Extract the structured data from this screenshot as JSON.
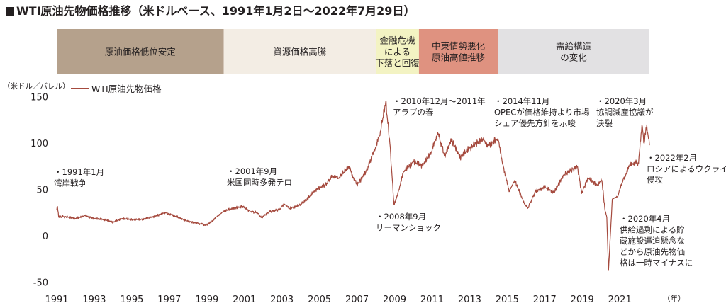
{
  "title": "WTI原油先物価格推移（米ドルベース、1991年1月2日～2022年7月29日）",
  "chart_data": {
    "type": "line",
    "title": "WTI原油先物価格推移（米ドルベース、1991年1月2日～2022年7月29日）",
    "ylabel": "（米ドル／バレル）",
    "xlabel": "（年）",
    "ylim": [
      -50,
      150
    ],
    "xlim": [
      1991,
      2022.58
    ],
    "y_ticks": [
      150,
      100,
      50,
      0,
      -50
    ],
    "x_ticks": [
      1991,
      1993,
      1995,
      1997,
      1999,
      2001,
      2003,
      2005,
      2007,
      2009,
      2011,
      2013,
      2015,
      2017,
      2019,
      2021
    ],
    "legend": "top-left",
    "series": [
      {
        "name": "WTI原油先物価格",
        "color": "#a54a3e",
        "x": [
          1991.0,
          1991.04,
          1991.1,
          1991.5,
          1992.0,
          1992.5,
          1993.0,
          1993.5,
          1994.0,
          1994.5,
          1995.0,
          1995.5,
          1996.0,
          1996.5,
          1996.8,
          1997.0,
          1997.5,
          1998.0,
          1998.5,
          1998.95,
          1999.3,
          1999.6,
          1999.9,
          2000.4,
          2000.9,
          2001.3,
          2001.7,
          2001.9,
          2002.3,
          2002.9,
          2003.1,
          2003.4,
          2003.9,
          2004.3,
          2004.8,
          2005.3,
          2005.7,
          2006.0,
          2006.55,
          2007.0,
          2007.5,
          2007.9,
          2008.2,
          2008.53,
          2008.75,
          2008.97,
          2009.2,
          2009.5,
          2010.0,
          2010.5,
          2011.0,
          2011.3,
          2011.7,
          2012.0,
          2012.5,
          2013.0,
          2013.7,
          2014.0,
          2014.5,
          2014.8,
          2015.1,
          2015.4,
          2015.9,
          2016.1,
          2016.5,
          2017.0,
          2017.5,
          2018.0,
          2018.75,
          2018.97,
          2019.3,
          2019.8,
          2020.05,
          2020.2,
          2020.31,
          2020.4,
          2020.6,
          2020.9,
          2021.2,
          2021.5,
          2021.8,
          2022.0,
          2022.18,
          2022.3,
          2022.44,
          2022.58
        ],
        "values": [
          28,
          32,
          21,
          21,
          19,
          22,
          19,
          18,
          15,
          19,
          18,
          18,
          20,
          23,
          25,
          24,
          20,
          16,
          14,
          12,
          16,
          22,
          27,
          30,
          32,
          27,
          25,
          20,
          26,
          29,
          35,
          30,
          33,
          39,
          50,
          55,
          65,
          62,
          75,
          55,
          70,
          92,
          108,
          145,
          100,
          34,
          48,
          70,
          80,
          76,
          92,
          112,
          85,
          105,
          85,
          95,
          105,
          98,
          105,
          75,
          48,
          60,
          36,
          30,
          48,
          53,
          47,
          66,
          75,
          46,
          63,
          55,
          60,
          30,
          20,
          -37,
          40,
          43,
          62,
          75,
          80,
          78,
          120,
          100,
          120,
          98
        ]
      }
    ],
    "period_bands": [
      {
        "label": "原油価格低位安定",
        "from": 1991.0,
        "to": 1999.9,
        "color": "#b5a18c"
      },
      {
        "label": "資源価格高騰",
        "from": 1999.9,
        "to": 2008.0,
        "color": "#f3ede4"
      },
      {
        "label": "金融危機\nによる\n下落と回復",
        "from": 2008.0,
        "to": 2010.3,
        "color": "#f3f3c3"
      },
      {
        "label": "中東情勢悪化\n原油高値推移",
        "from": 2010.3,
        "to": 2014.5,
        "color": "#df9280"
      },
      {
        "label": "需給構造\nの変化",
        "from": 2014.5,
        "to": 2022.58,
        "color": "#e2e1e3"
      }
    ],
    "annotations": [
      {
        "text": "・1991年1月\n湾岸戦争"
      },
      {
        "text": "・2001年9月\n米国同時多発テロ"
      },
      {
        "text": "・2008年9月\nリーマンショック"
      },
      {
        "text": "・2010年12月～2011年\nアラブの春"
      },
      {
        "text": "・2014年11月\nOPECが価格維持より市場\nシェア優先方針を示唆"
      },
      {
        "text": "・2020年3月\n協調減産協議が\n決裂"
      },
      {
        "text": "・2022年2月\nロシアによるウクライナ\n侵攻"
      },
      {
        "text": "・2020年4月\n供給過剰による貯\n蔵施設逼迫懸念な\nどから原油先物価\n格は一時マイナスに"
      }
    ]
  }
}
